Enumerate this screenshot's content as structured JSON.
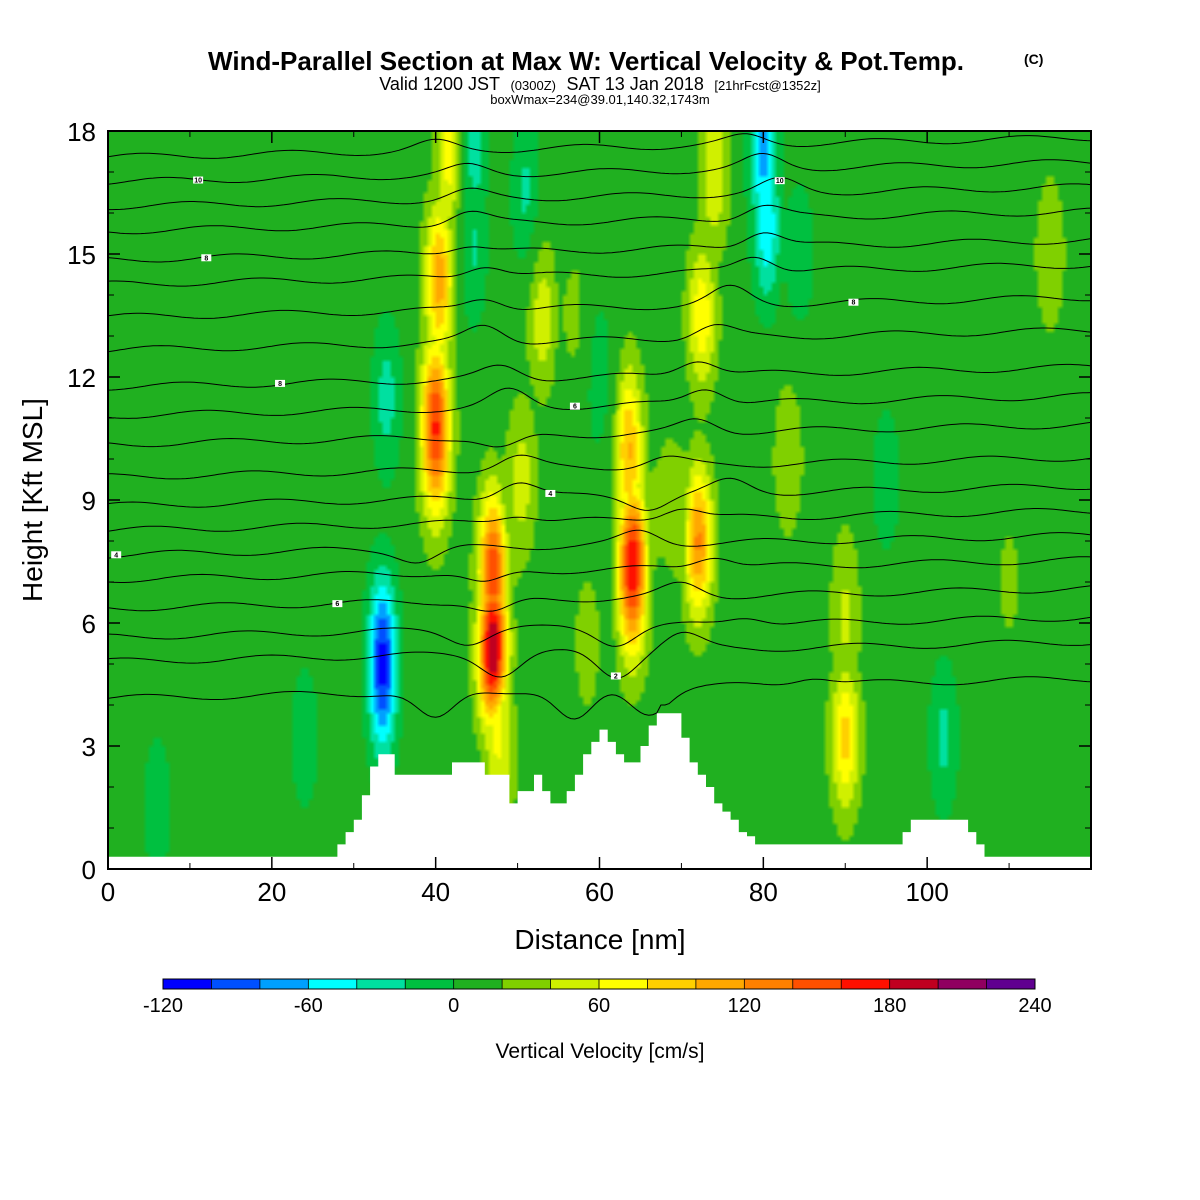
{
  "title": {
    "main": "Wind-Parallel Section at Max W: Vertical Velocity & Pot.Temp.",
    "copyright": "(C)",
    "line2_a": "Valid 1200 JST",
    "line2_b": "(0300Z)",
    "line2_c": "SAT 13 Jan 2018",
    "line2_d": "[21hrFcst@1352z]",
    "line3": "boxWmax=234@39.01,140.32,1743m"
  },
  "chart_data": {
    "type": "heatmap",
    "xlabel": "Distance [nm]",
    "ylabel": "Height [Kft MSL]",
    "xlim": [
      0,
      120
    ],
    "ylim": [
      0,
      18
    ],
    "x_ticks": [
      0,
      20,
      40,
      60,
      80,
      100
    ],
    "y_ticks": [
      0,
      3,
      6,
      9,
      12,
      15,
      18
    ],
    "fill_variable": "Vertical Velocity [cm/s]",
    "colorbar": {
      "title": "Vertical Velocity [cm/s]",
      "levels": [
        -120,
        -100,
        -80,
        -60,
        -40,
        -20,
        0,
        20,
        40,
        60,
        80,
        100,
        120,
        140,
        160,
        180,
        200,
        220,
        240
      ],
      "tick_labels": [
        "-120",
        "-60",
        "0",
        "60",
        "120",
        "180",
        "240"
      ],
      "colors": [
        "#0000ff",
        "#0050ff",
        "#00a0ff",
        "#00ffff",
        "#00e0a0",
        "#00c040",
        "#20b020",
        "#80d000",
        "#d0f000",
        "#ffff00",
        "#ffd000",
        "#ffa800",
        "#ff8000",
        "#ff5000",
        "#ff1000",
        "#c00020",
        "#900060",
        "#600090"
      ]
    },
    "background_value": 10,
    "velocity_features": [
      {
        "x": 33.5,
        "y": 5.0,
        "value": -110
      },
      {
        "x": 34,
        "y": 11.5,
        "value": -30
      },
      {
        "x": 40,
        "y": 10.8,
        "value": 165
      },
      {
        "x": 40.5,
        "y": 14.5,
        "value": 110
      },
      {
        "x": 42,
        "y": 17.5,
        "value": 80
      },
      {
        "x": 47,
        "y": 5.5,
        "value": 230
      },
      {
        "x": 47,
        "y": 7.5,
        "value": 120
      },
      {
        "x": 48,
        "y": 2.2,
        "value": 40
      },
      {
        "x": 50.5,
        "y": 9.5,
        "value": 50
      },
      {
        "x": 53,
        "y": 13.5,
        "value": 55
      },
      {
        "x": 57,
        "y": 13.5,
        "value": 25
      },
      {
        "x": 44.5,
        "y": 15,
        "value": -20
      },
      {
        "x": 44.5,
        "y": 17.5,
        "value": -45
      },
      {
        "x": 51,
        "y": 16.5,
        "value": -25
      },
      {
        "x": 60,
        "y": 12,
        "value": -15
      },
      {
        "x": 58.5,
        "y": 5.5,
        "value": 30
      },
      {
        "x": 64,
        "y": 7.5,
        "value": 185
      },
      {
        "x": 63.5,
        "y": 10.5,
        "value": 90
      },
      {
        "x": 68.5,
        "y": 9,
        "value": 30
      },
      {
        "x": 72,
        "y": 8,
        "value": 125
      },
      {
        "x": 72.5,
        "y": 13.5,
        "value": 75
      },
      {
        "x": 74,
        "y": 17,
        "value": 60
      },
      {
        "x": 80.5,
        "y": 15.5,
        "value": -45
      },
      {
        "x": 80,
        "y": 17.5,
        "value": -80
      },
      {
        "x": 84.5,
        "y": 15,
        "value": -15
      },
      {
        "x": 83,
        "y": 10,
        "value": 40
      },
      {
        "x": 90,
        "y": 3.3,
        "value": 90
      },
      {
        "x": 90,
        "y": 6.5,
        "value": 40
      },
      {
        "x": 95,
        "y": 9.5,
        "value": -15
      },
      {
        "x": 102,
        "y": 3.2,
        "value": -25
      },
      {
        "x": 115,
        "y": 15,
        "value": 40
      },
      {
        "x": 110,
        "y": 7,
        "value": 25
      },
      {
        "x": 24,
        "y": 3.2,
        "value": -15
      },
      {
        "x": 6,
        "y": 1.5,
        "value": -15
      },
      {
        "x": 100,
        "y": 12,
        "value": 20
      }
    ],
    "terrain": [
      {
        "x": 0,
        "h": 0.3
      },
      {
        "x": 27,
        "h": 0.3
      },
      {
        "x": 28,
        "h": 0.6
      },
      {
        "x": 29,
        "h": 0.9
      },
      {
        "x": 30,
        "h": 1.2
      },
      {
        "x": 31,
        "h": 1.8
      },
      {
        "x": 32,
        "h": 2.5
      },
      {
        "x": 33,
        "h": 2.8
      },
      {
        "x": 34,
        "h": 2.8
      },
      {
        "x": 35,
        "h": 2.3
      },
      {
        "x": 41,
        "h": 2.3
      },
      {
        "x": 42,
        "h": 2.6
      },
      {
        "x": 45,
        "h": 2.6
      },
      {
        "x": 46,
        "h": 2.3
      },
      {
        "x": 48,
        "h": 2.3
      },
      {
        "x": 49,
        "h": 1.6
      },
      {
        "x": 50,
        "h": 1.9
      },
      {
        "x": 52,
        "h": 2.3
      },
      {
        "x": 53,
        "h": 1.9
      },
      {
        "x": 54,
        "h": 1.6
      },
      {
        "x": 56,
        "h": 1.9
      },
      {
        "x": 57,
        "h": 2.3
      },
      {
        "x": 58,
        "h": 2.8
      },
      {
        "x": 59,
        "h": 3.1
      },
      {
        "x": 60,
        "h": 3.4
      },
      {
        "x": 61,
        "h": 3.1
      },
      {
        "x": 62,
        "h": 2.8
      },
      {
        "x": 63,
        "h": 2.6
      },
      {
        "x": 64,
        "h": 2.6
      },
      {
        "x": 65,
        "h": 3.0
      },
      {
        "x": 66,
        "h": 3.5
      },
      {
        "x": 67,
        "h": 3.8
      },
      {
        "x": 69,
        "h": 3.8
      },
      {
        "x": 70,
        "h": 3.2
      },
      {
        "x": 71,
        "h": 2.6
      },
      {
        "x": 72,
        "h": 2.3
      },
      {
        "x": 73,
        "h": 2.0
      },
      {
        "x": 74,
        "h": 1.6
      },
      {
        "x": 75,
        "h": 1.4
      },
      {
        "x": 76,
        "h": 1.2
      },
      {
        "x": 77,
        "h": 0.9
      },
      {
        "x": 78,
        "h": 0.8
      },
      {
        "x": 79,
        "h": 0.6
      },
      {
        "x": 96,
        "h": 0.6
      },
      {
        "x": 97,
        "h": 0.9
      },
      {
        "x": 98,
        "h": 1.2
      },
      {
        "x": 104,
        "h": 1.2
      },
      {
        "x": 105,
        "h": 0.9
      },
      {
        "x": 106,
        "h": 0.6
      },
      {
        "x": 107,
        "h": 0.3
      },
      {
        "x": 120,
        "h": 0.3
      }
    ],
    "isentropes": [
      {
        "y0": 4.4,
        "label": "",
        "bumps": [
          {
            "x": 40,
            "dy": -0.7
          },
          {
            "x": 57,
            "dy": -0.8
          },
          {
            "x": 66,
            "dy": -0.6
          },
          {
            "x": 86,
            "dy": 0.2
          }
        ]
      },
      {
        "y0": 5.3,
        "label": "2",
        "label_x": 62,
        "bumps": [
          {
            "x": 48,
            "dy": -0.5
          },
          {
            "x": 62,
            "dy": -0.6
          },
          {
            "x": 70,
            "dy": 0.4
          }
        ]
      },
      {
        "y0": 5.9,
        "label": "",
        "bumps": [
          {
            "x": 44,
            "dy": -0.3
          },
          {
            "x": 62,
            "dy": -0.4
          },
          {
            "x": 78,
            "dy": 0.2
          }
        ]
      },
      {
        "y0": 6.6,
        "label": "6",
        "label_x": 28,
        "bumps": [
          {
            "x": 47,
            "dy": -0.3
          },
          {
            "x": 70,
            "dy": 0.3
          }
        ]
      },
      {
        "y0": 7.3,
        "label": "",
        "bumps": [
          {
            "x": 46,
            "dy": -0.3
          },
          {
            "x": 74,
            "dy": 0.3
          }
        ]
      },
      {
        "y0": 7.9,
        "label": "4",
        "label_x": 1,
        "bumps": [
          {
            "x": 38,
            "dy": -0.3
          },
          {
            "x": 65,
            "dy": 0.3
          }
        ]
      },
      {
        "y0": 8.5,
        "label": "",
        "bumps": [
          {
            "x": 50,
            "dy": 0.2
          },
          {
            "x": 70,
            "dy": 0.3
          }
        ]
      },
      {
        "y0": 9.1,
        "label": "4",
        "label_x": 54,
        "bumps": [
          {
            "x": 50,
            "dy": 0.4
          },
          {
            "x": 66,
            "dy": -0.3
          },
          {
            "x": 76,
            "dy": 0.3
          }
        ]
      },
      {
        "y0": 9.8,
        "label": "",
        "bumps": [
          {
            "x": 50,
            "dy": 0.3
          },
          {
            "x": 68,
            "dy": 0.2
          }
        ]
      },
      {
        "y0": 10.6,
        "label": "",
        "bumps": [
          {
            "x": 48,
            "dy": -0.3
          },
          {
            "x": 72,
            "dy": 0.3
          }
        ]
      },
      {
        "y0": 11.3,
        "label": "6",
        "label_x": 57,
        "bumps": [
          {
            "x": 49,
            "dy": 0.4
          },
          {
            "x": 73,
            "dy": 0.4
          }
        ]
      },
      {
        "y0": 12.0,
        "label": "8",
        "label_x": 21,
        "bumps": [
          {
            "x": 48,
            "dy": 0.3
          },
          {
            "x": 72,
            "dy": 0.4
          }
        ]
      },
      {
        "y0": 12.9,
        "label": "",
        "bumps": [
          {
            "x": 46,
            "dy": 0.4
          },
          {
            "x": 74,
            "dy": 0.3
          }
        ]
      },
      {
        "y0": 13.7,
        "label": "8",
        "label_x": 91,
        "bumps": [
          {
            "x": 46,
            "dy": 0.3
          },
          {
            "x": 76,
            "dy": 0.4
          }
        ]
      },
      {
        "y0": 14.5,
        "label": "",
        "bumps": [
          {
            "x": 46,
            "dy": 0.3
          },
          {
            "x": 79,
            "dy": 0.4
          }
        ]
      },
      {
        "y0": 15.1,
        "label": "8",
        "label_x": 12,
        "bumps": [
          {
            "x": 44,
            "dy": 0.2
          },
          {
            "x": 80,
            "dy": 0.4
          }
        ]
      },
      {
        "y0": 15.8,
        "label": "",
        "bumps": [
          {
            "x": 44,
            "dy": 0.3
          },
          {
            "x": 80,
            "dy": 0.3
          }
        ]
      },
      {
        "y0": 16.4,
        "label": "10",
        "label_x": 82,
        "bumps": [
          {
            "x": 44,
            "dy": 0.2
          },
          {
            "x": 82,
            "dy": 0.3
          }
        ]
      },
      {
        "y0": 17.0,
        "label": "10",
        "label_x": 11,
        "bumps": [
          {
            "x": 44,
            "dy": 0.2
          },
          {
            "x": 80,
            "dy": 0.3
          }
        ]
      },
      {
        "y0": 17.6,
        "label": "",
        "bumps": [
          {
            "x": 40,
            "dy": 0.2
          },
          {
            "x": 78,
            "dy": 0.2
          }
        ]
      }
    ]
  }
}
